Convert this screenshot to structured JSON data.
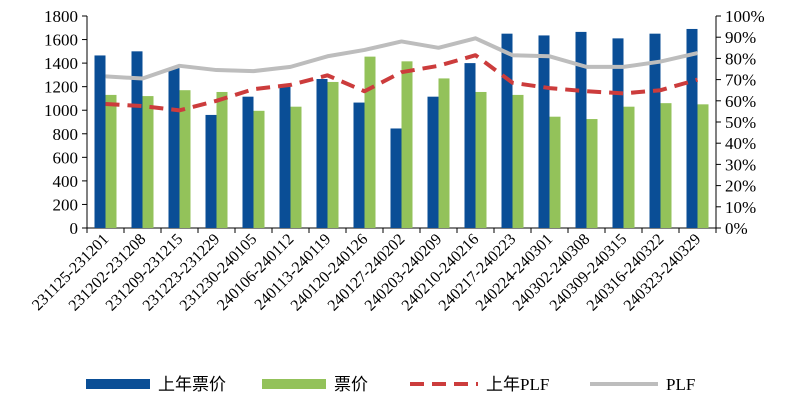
{
  "chart_data": {
    "type": "bar",
    "categories": [
      "231125-231201",
      "231202-231208",
      "231209-231215",
      "231223-231229",
      "231230-240105",
      "240106-240112",
      "240113-240119",
      "240120-240126",
      "240127-240202",
      "240203-240209",
      "240210-240216",
      "240217-240223",
      "240224-240301",
      "240302-240308",
      "240309-240315",
      "240316-240322",
      "240323-240329"
    ],
    "series": [
      {
        "name": "上年票价",
        "type": "bar",
        "axis": "left",
        "color": "#0a4e96",
        "values": [
          1465,
          1500,
          1360,
          960,
          1115,
          1210,
          1265,
          1065,
          845,
          1115,
          1400,
          1650,
          1635,
          1665,
          1610,
          1650,
          1690
        ]
      },
      {
        "name": "票价",
        "type": "bar",
        "axis": "left",
        "color": "#93c25a",
        "values": [
          1130,
          1120,
          1170,
          1155,
          995,
          1030,
          1240,
          1455,
          1415,
          1270,
          1155,
          1130,
          945,
          925,
          1030,
          1060,
          1050
        ]
      },
      {
        "name": "上年PLF",
        "type": "line",
        "axis": "right",
        "color": "#cc3c3c",
        "dash": true,
        "values": [
          0.585,
          0.575,
          0.555,
          0.6,
          0.655,
          0.675,
          0.72,
          0.645,
          0.735,
          0.765,
          0.815,
          0.685,
          0.66,
          0.645,
          0.635,
          0.65,
          0.7
        ]
      },
      {
        "name": "PLF",
        "type": "line",
        "axis": "right",
        "color": "#bdbdbd",
        "dash": false,
        "values": [
          0.715,
          0.705,
          0.765,
          0.745,
          0.74,
          0.76,
          0.81,
          0.84,
          0.88,
          0.85,
          0.895,
          0.815,
          0.81,
          0.76,
          0.76,
          0.785,
          0.825
        ]
      }
    ],
    "y_left": {
      "min": 0,
      "max": 1800,
      "step": 200,
      "ticks": [
        "0",
        "200",
        "400",
        "600",
        "800",
        "1000",
        "1200",
        "1400",
        "1600",
        "1800"
      ]
    },
    "y_right": {
      "min": 0,
      "max": 1,
      "step": 0.1,
      "ticks": [
        "0%",
        "10%",
        "20%",
        "30%",
        "40%",
        "50%",
        "60%",
        "70%",
        "80%",
        "90%",
        "100%"
      ]
    },
    "title": "",
    "xlabel": "",
    "ylabel": "",
    "grid": false,
    "legend_position": "bottom"
  }
}
